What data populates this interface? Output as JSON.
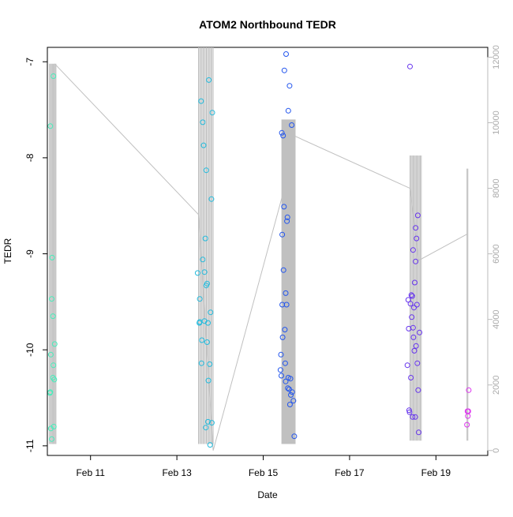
{
  "chart_data": {
    "type": "scatter",
    "title": "ATOM2 Northbound TEDR",
    "xlabel": "Date",
    "ylabel": "TEDR",
    "x_ticks": [
      {
        "label": "Feb 11",
        "value": 11
      },
      {
        "label": "Feb 13",
        "value": 13
      },
      {
        "label": "Feb 15",
        "value": 15
      },
      {
        "label": "Feb 17",
        "value": 17
      },
      {
        "label": "Feb 19",
        "value": 19
      }
    ],
    "x_range_days": [
      10.0,
      20.2
    ],
    "ylim": [
      -11.1,
      -6.85
    ],
    "y_ticks": [
      {
        "label": "-7",
        "value": -7
      },
      {
        "label": "-8",
        "value": -8
      },
      {
        "label": "-9",
        "value": -9
      },
      {
        "label": "-10",
        "value": -10
      },
      {
        "label": "-11",
        "value": -11
      }
    ],
    "y2lim": [
      -150,
      12300
    ],
    "y2_ticks": [
      {
        "label": "0",
        "value": 0
      },
      {
        "label": "2000",
        "value": 2000
      },
      {
        "label": "4000",
        "value": 4000
      },
      {
        "label": "6000",
        "value": 6000
      },
      {
        "label": "8000",
        "value": 8000
      },
      {
        "label": "10000",
        "value": 10000
      },
      {
        "label": "12000",
        "value": 12000
      }
    ],
    "secondary_series": {
      "color": "#c0c0c0",
      "points": [
        [
          10.17,
          11800
        ],
        [
          13.5,
          7200
        ],
        [
          13.84,
          0
        ],
        [
          15.45,
          7800
        ],
        [
          15.72,
          9600
        ],
        [
          18.4,
          8000
        ],
        [
          18.6,
          5800
        ],
        [
          19.72,
          6600
        ]
      ],
      "bursts": [
        {
          "x": [
            10.05,
            10.2
          ],
          "lo": 200,
          "hi": 11800,
          "n": 8
        },
        {
          "x": [
            13.5,
            13.84
          ],
          "lo": 200,
          "hi": 12300,
          "n": 14
        },
        {
          "x": [
            15.43,
            15.74
          ],
          "lo": 200,
          "hi": 10100,
          "n": 18
        },
        {
          "x": [
            18.4,
            18.66
          ],
          "lo": 300,
          "hi": 9000,
          "n": 12
        },
        {
          "x": [
            19.72,
            19.74
          ],
          "lo": 300,
          "hi": 8600,
          "n": 2
        }
      ]
    },
    "series": [
      {
        "color": "#44eebb",
        "points": [
          [
            10.07,
            -7.67
          ],
          [
            10.08,
            -10.82
          ],
          [
            10.06,
            -10.45
          ],
          [
            10.08,
            -10.05
          ],
          [
            10.1,
            -10.93
          ],
          [
            10.1,
            -9.47
          ],
          [
            10.11,
            -9.04
          ],
          [
            10.13,
            -9.65
          ],
          [
            10.13,
            -10.29
          ],
          [
            10.14,
            -10.16
          ],
          [
            10.15,
            -10.8
          ],
          [
            10.16,
            -10.31
          ],
          [
            10.17,
            -9.94
          ],
          [
            10.14,
            -7.15
          ],
          [
            10.07,
            -10.44
          ]
        ]
      },
      {
        "color": "#22bbdd",
        "points": [
          [
            13.48,
            -9.2
          ],
          [
            13.52,
            -9.72
          ],
          [
            13.53,
            -9.47
          ],
          [
            13.53,
            -9.71
          ],
          [
            13.56,
            -7.41
          ],
          [
            13.57,
            -10.14
          ],
          [
            13.58,
            -9.9
          ],
          [
            13.6,
            -9.06
          ],
          [
            13.6,
            -7.63
          ],
          [
            13.62,
            -7.87
          ],
          [
            13.64,
            -9.19
          ],
          [
            13.64,
            -9.7
          ],
          [
            13.66,
            -8.84
          ],
          [
            13.67,
            -10.81
          ],
          [
            13.68,
            -8.13
          ],
          [
            13.68,
            -9.33
          ],
          [
            13.7,
            -9.31
          ],
          [
            13.7,
            -9.92
          ],
          [
            13.72,
            -9.72
          ],
          [
            13.72,
            -10.75
          ],
          [
            13.73,
            -10.32
          ],
          [
            13.74,
            -7.19
          ],
          [
            13.76,
            -10.15
          ],
          [
            13.77,
            -10.99
          ],
          [
            13.78,
            -9.61
          ],
          [
            13.8,
            -8.43
          ],
          [
            13.81,
            -10.76
          ],
          [
            13.82,
            -7.53
          ]
        ]
      },
      {
        "color": "#2255ee",
        "points": [
          [
            15.4,
            -10.21
          ],
          [
            15.41,
            -10.05
          ],
          [
            15.42,
            -10.27
          ],
          [
            15.43,
            -7.74
          ],
          [
            15.44,
            -9.53
          ],
          [
            15.44,
            -8.8
          ],
          [
            15.45,
            -9.87
          ],
          [
            15.46,
            -7.77
          ],
          [
            15.47,
            -9.17
          ],
          [
            15.48,
            -8.51
          ],
          [
            15.49,
            -7.09
          ],
          [
            15.5,
            -9.79
          ],
          [
            15.51,
            -10.14
          ],
          [
            15.52,
            -9.41
          ],
          [
            15.52,
            -10.33
          ],
          [
            15.53,
            -6.92
          ],
          [
            15.54,
            -9.53
          ],
          [
            15.55,
            -8.66
          ],
          [
            15.56,
            -8.62
          ],
          [
            15.57,
            -10.4
          ],
          [
            15.58,
            -7.51
          ],
          [
            15.58,
            -10.29
          ],
          [
            15.6,
            -10.41
          ],
          [
            15.61,
            -7.25
          ],
          [
            15.62,
            -10.57
          ],
          [
            15.63,
            -10.3
          ],
          [
            15.64,
            -10.47
          ],
          [
            15.66,
            -7.66
          ],
          [
            15.67,
            -10.44
          ],
          [
            15.7,
            -10.53
          ],
          [
            15.72,
            -10.9
          ]
        ]
      },
      {
        "color": "#6633ee",
        "points": [
          [
            18.34,
            -10.16
          ],
          [
            18.36,
            -9.48
          ],
          [
            18.37,
            -9.78
          ],
          [
            18.38,
            -10.63
          ],
          [
            18.39,
            -10.65
          ],
          [
            18.4,
            -7.05
          ],
          [
            18.41,
            -9.52
          ],
          [
            18.42,
            -10.29
          ],
          [
            18.43,
            -9.43
          ],
          [
            18.44,
            -9.66
          ],
          [
            18.45,
            -9.44
          ],
          [
            18.46,
            -10.7
          ],
          [
            18.47,
            -9.77
          ],
          [
            18.47,
            -8.96
          ],
          [
            18.48,
            -9.87
          ],
          [
            18.49,
            -9.56
          ],
          [
            18.5,
            -10.01
          ],
          [
            18.51,
            -9.3
          ],
          [
            18.52,
            -10.7
          ],
          [
            18.53,
            -9.08
          ],
          [
            18.53,
            -8.73
          ],
          [
            18.54,
            -9.96
          ],
          [
            18.55,
            -8.84
          ],
          [
            18.56,
            -9.53
          ],
          [
            18.57,
            -10.14
          ],
          [
            18.58,
            -8.6
          ],
          [
            18.59,
            -10.42
          ],
          [
            18.6,
            -10.86
          ],
          [
            18.62,
            -9.82
          ]
        ]
      },
      {
        "color": "#dd33ee",
        "points": [
          [
            19.72,
            -10.78
          ],
          [
            19.73,
            -10.64
          ],
          [
            19.74,
            -10.69
          ],
          [
            19.75,
            -10.64
          ],
          [
            19.76,
            -10.42
          ]
        ]
      }
    ]
  }
}
